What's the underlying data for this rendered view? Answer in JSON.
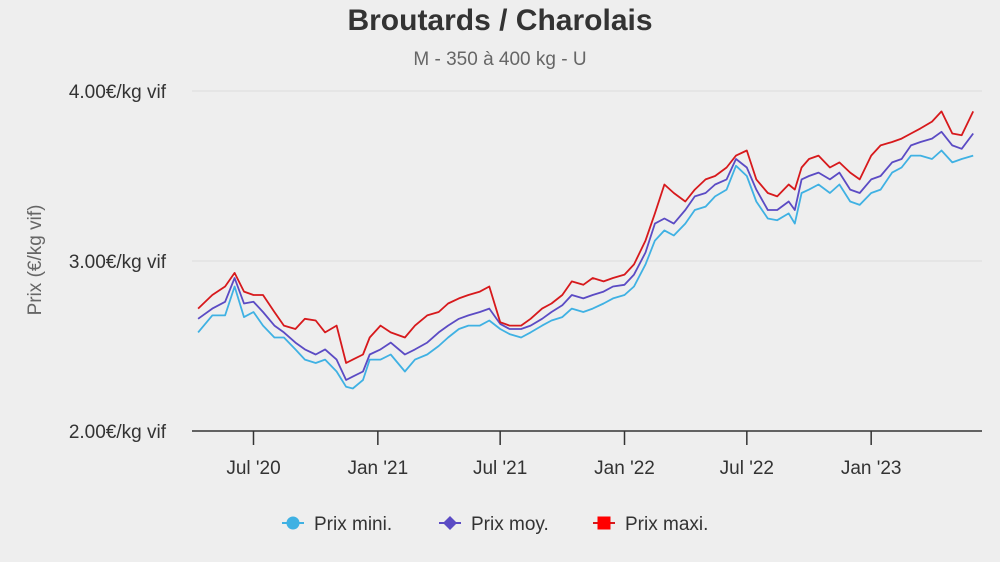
{
  "chart_data": {
    "type": "line",
    "title": "Broutards / Charolais",
    "subtitle": "M - 350 à 400 kg - U",
    "ylabel": "Prix (€/kg vif)",
    "xlabel": "",
    "ylim": [
      2.0,
      4.0
    ],
    "yticks": [
      {
        "value": 2.0,
        "label": "2.00€/kg vif"
      },
      {
        "value": 3.0,
        "label": "3.00€/kg vif"
      },
      {
        "value": 4.0,
        "label": "4.00€/kg vif"
      }
    ],
    "xlim": [
      "2020-04-01",
      "2023-06-14"
    ],
    "xticks": [
      {
        "date": "2020-07-01",
        "label": "Jul '20"
      },
      {
        "date": "2021-01-01",
        "label": "Jan '21"
      },
      {
        "date": "2021-07-01",
        "label": "Jul '21"
      },
      {
        "date": "2022-01-01",
        "label": "Jan '22"
      },
      {
        "date": "2022-07-01",
        "label": "Jul '22"
      },
      {
        "date": "2023-01-01",
        "label": "Jan '23"
      }
    ],
    "grid": true,
    "legend_position": "bottom-center",
    "series": [
      {
        "name": "Prix mini.",
        "color": "#3fb1e3",
        "marker": "circle",
        "points": [
          [
            "2020-04-10",
            2.58
          ],
          [
            "2020-05-01",
            2.68
          ],
          [
            "2020-05-20",
            2.68
          ],
          [
            "2020-06-03",
            2.85
          ],
          [
            "2020-06-17",
            2.67
          ],
          [
            "2020-07-01",
            2.7
          ],
          [
            "2020-07-15",
            2.62
          ],
          [
            "2020-08-01",
            2.55
          ],
          [
            "2020-08-15",
            2.55
          ],
          [
            "2020-09-01",
            2.48
          ],
          [
            "2020-09-15",
            2.42
          ],
          [
            "2020-10-01",
            2.4
          ],
          [
            "2020-10-15",
            2.42
          ],
          [
            "2020-11-01",
            2.35
          ],
          [
            "2020-11-15",
            2.26
          ],
          [
            "2020-11-25",
            2.25
          ],
          [
            "2020-12-10",
            2.3
          ],
          [
            "2020-12-20",
            2.42
          ],
          [
            "2021-01-05",
            2.42
          ],
          [
            "2021-01-20",
            2.45
          ],
          [
            "2021-02-10",
            2.35
          ],
          [
            "2021-02-25",
            2.42
          ],
          [
            "2021-03-15",
            2.45
          ],
          [
            "2021-04-01",
            2.5
          ],
          [
            "2021-04-15",
            2.55
          ],
          [
            "2021-05-01",
            2.6
          ],
          [
            "2021-05-15",
            2.62
          ],
          [
            "2021-06-01",
            2.62
          ],
          [
            "2021-06-15",
            2.65
          ],
          [
            "2021-07-01",
            2.6
          ],
          [
            "2021-07-15",
            2.57
          ],
          [
            "2021-08-01",
            2.55
          ],
          [
            "2021-08-15",
            2.58
          ],
          [
            "2021-09-01",
            2.62
          ],
          [
            "2021-09-15",
            2.65
          ],
          [
            "2021-10-01",
            2.67
          ],
          [
            "2021-10-15",
            2.72
          ],
          [
            "2021-11-01",
            2.7
          ],
          [
            "2021-11-15",
            2.72
          ],
          [
            "2021-12-01",
            2.75
          ],
          [
            "2021-12-15",
            2.78
          ],
          [
            "2022-01-01",
            2.8
          ],
          [
            "2022-01-15",
            2.85
          ],
          [
            "2022-02-01",
            2.98
          ],
          [
            "2022-02-15",
            3.12
          ],
          [
            "2022-03-01",
            3.18
          ],
          [
            "2022-03-15",
            3.15
          ],
          [
            "2022-04-01",
            3.22
          ],
          [
            "2022-04-15",
            3.3
          ],
          [
            "2022-05-01",
            3.32
          ],
          [
            "2022-05-15",
            3.38
          ],
          [
            "2022-06-01",
            3.42
          ],
          [
            "2022-06-15",
            3.56
          ],
          [
            "2022-07-01",
            3.5
          ],
          [
            "2022-07-15",
            3.35
          ],
          [
            "2022-08-01",
            3.25
          ],
          [
            "2022-08-15",
            3.24
          ],
          [
            "2022-09-01",
            3.28
          ],
          [
            "2022-09-10",
            3.22
          ],
          [
            "2022-09-20",
            3.4
          ],
          [
            "2022-10-01",
            3.42
          ],
          [
            "2022-10-15",
            3.45
          ],
          [
            "2022-11-01",
            3.4
          ],
          [
            "2022-11-15",
            3.45
          ],
          [
            "2022-12-01",
            3.35
          ],
          [
            "2022-12-15",
            3.33
          ],
          [
            "2023-01-01",
            3.4
          ],
          [
            "2023-01-15",
            3.42
          ],
          [
            "2023-02-01",
            3.52
          ],
          [
            "2023-02-15",
            3.55
          ],
          [
            "2023-03-01",
            3.62
          ],
          [
            "2023-03-15",
            3.62
          ],
          [
            "2023-04-01",
            3.6
          ],
          [
            "2023-04-15",
            3.65
          ],
          [
            "2023-05-01",
            3.58
          ],
          [
            "2023-05-15",
            3.6
          ],
          [
            "2023-06-01",
            3.62
          ]
        ]
      },
      {
        "name": "Prix moy.",
        "color": "#5b4bc4",
        "marker": "diamond",
        "points": [
          [
            "2020-04-10",
            2.66
          ],
          [
            "2020-05-01",
            2.72
          ],
          [
            "2020-05-20",
            2.76
          ],
          [
            "2020-06-03",
            2.9
          ],
          [
            "2020-06-17",
            2.75
          ],
          [
            "2020-07-01",
            2.76
          ],
          [
            "2020-07-15",
            2.7
          ],
          [
            "2020-08-01",
            2.62
          ],
          [
            "2020-08-15",
            2.58
          ],
          [
            "2020-09-01",
            2.52
          ],
          [
            "2020-09-15",
            2.48
          ],
          [
            "2020-10-01",
            2.45
          ],
          [
            "2020-10-15",
            2.48
          ],
          [
            "2020-11-01",
            2.42
          ],
          [
            "2020-11-15",
            2.3
          ],
          [
            "2020-11-25",
            2.32
          ],
          [
            "2020-12-10",
            2.35
          ],
          [
            "2020-12-20",
            2.45
          ],
          [
            "2021-01-05",
            2.48
          ],
          [
            "2021-01-20",
            2.52
          ],
          [
            "2021-02-10",
            2.45
          ],
          [
            "2021-02-25",
            2.48
          ],
          [
            "2021-03-15",
            2.52
          ],
          [
            "2021-04-01",
            2.58
          ],
          [
            "2021-04-15",
            2.62
          ],
          [
            "2021-05-01",
            2.66
          ],
          [
            "2021-05-15",
            2.68
          ],
          [
            "2021-06-01",
            2.7
          ],
          [
            "2021-06-15",
            2.72
          ],
          [
            "2021-07-01",
            2.63
          ],
          [
            "2021-07-15",
            2.6
          ],
          [
            "2021-08-01",
            2.6
          ],
          [
            "2021-08-15",
            2.62
          ],
          [
            "2021-09-01",
            2.66
          ],
          [
            "2021-09-15",
            2.7
          ],
          [
            "2021-10-01",
            2.74
          ],
          [
            "2021-10-15",
            2.8
          ],
          [
            "2021-11-01",
            2.78
          ],
          [
            "2021-11-15",
            2.8
          ],
          [
            "2021-12-01",
            2.82
          ],
          [
            "2021-12-15",
            2.85
          ],
          [
            "2022-01-01",
            2.86
          ],
          [
            "2022-01-15",
            2.92
          ],
          [
            "2022-02-01",
            3.05
          ],
          [
            "2022-02-15",
            3.22
          ],
          [
            "2022-03-01",
            3.25
          ],
          [
            "2022-03-15",
            3.22
          ],
          [
            "2022-04-01",
            3.3
          ],
          [
            "2022-04-15",
            3.38
          ],
          [
            "2022-05-01",
            3.4
          ],
          [
            "2022-05-15",
            3.45
          ],
          [
            "2022-06-01",
            3.48
          ],
          [
            "2022-06-15",
            3.6
          ],
          [
            "2022-07-01",
            3.55
          ],
          [
            "2022-07-15",
            3.42
          ],
          [
            "2022-08-01",
            3.3
          ],
          [
            "2022-08-15",
            3.3
          ],
          [
            "2022-09-01",
            3.35
          ],
          [
            "2022-09-10",
            3.3
          ],
          [
            "2022-09-20",
            3.48
          ],
          [
            "2022-10-01",
            3.5
          ],
          [
            "2022-10-15",
            3.52
          ],
          [
            "2022-11-01",
            3.48
          ],
          [
            "2022-11-15",
            3.52
          ],
          [
            "2022-12-01",
            3.42
          ],
          [
            "2022-12-15",
            3.4
          ],
          [
            "2023-01-01",
            3.48
          ],
          [
            "2023-01-15",
            3.5
          ],
          [
            "2023-02-01",
            3.58
          ],
          [
            "2023-02-15",
            3.6
          ],
          [
            "2023-03-01",
            3.68
          ],
          [
            "2023-03-15",
            3.7
          ],
          [
            "2023-04-01",
            3.72
          ],
          [
            "2023-04-15",
            3.76
          ],
          [
            "2023-05-01",
            3.68
          ],
          [
            "2023-05-15",
            3.66
          ],
          [
            "2023-06-01",
            3.75
          ]
        ]
      },
      {
        "name": "Prix maxi.",
        "color": "#d7191c",
        "marker": "square",
        "points": [
          [
            "2020-04-10",
            2.72
          ],
          [
            "2020-05-01",
            2.8
          ],
          [
            "2020-05-20",
            2.85
          ],
          [
            "2020-06-03",
            2.93
          ],
          [
            "2020-06-17",
            2.82
          ],
          [
            "2020-07-01",
            2.8
          ],
          [
            "2020-07-15",
            2.8
          ],
          [
            "2020-08-01",
            2.7
          ],
          [
            "2020-08-15",
            2.62
          ],
          [
            "2020-09-01",
            2.6
          ],
          [
            "2020-09-15",
            2.66
          ],
          [
            "2020-10-01",
            2.65
          ],
          [
            "2020-10-15",
            2.58
          ],
          [
            "2020-11-01",
            2.62
          ],
          [
            "2020-11-15",
            2.4
          ],
          [
            "2020-11-25",
            2.42
          ],
          [
            "2020-12-10",
            2.45
          ],
          [
            "2020-12-20",
            2.55
          ],
          [
            "2021-01-05",
            2.62
          ],
          [
            "2021-01-20",
            2.58
          ],
          [
            "2021-02-10",
            2.55
          ],
          [
            "2021-02-25",
            2.62
          ],
          [
            "2021-03-15",
            2.68
          ],
          [
            "2021-04-01",
            2.7
          ],
          [
            "2021-04-15",
            2.75
          ],
          [
            "2021-05-01",
            2.78
          ],
          [
            "2021-05-15",
            2.8
          ],
          [
            "2021-06-01",
            2.82
          ],
          [
            "2021-06-15",
            2.85
          ],
          [
            "2021-07-01",
            2.64
          ],
          [
            "2021-07-15",
            2.62
          ],
          [
            "2021-08-01",
            2.62
          ],
          [
            "2021-08-15",
            2.66
          ],
          [
            "2021-09-01",
            2.72
          ],
          [
            "2021-09-15",
            2.75
          ],
          [
            "2021-10-01",
            2.8
          ],
          [
            "2021-10-15",
            2.88
          ],
          [
            "2021-11-01",
            2.86
          ],
          [
            "2021-11-15",
            2.9
          ],
          [
            "2021-12-01",
            2.88
          ],
          [
            "2021-12-15",
            2.9
          ],
          [
            "2022-01-01",
            2.92
          ],
          [
            "2022-01-15",
            2.98
          ],
          [
            "2022-02-01",
            3.12
          ],
          [
            "2022-02-15",
            3.28
          ],
          [
            "2022-03-01",
            3.45
          ],
          [
            "2022-03-15",
            3.4
          ],
          [
            "2022-04-01",
            3.35
          ],
          [
            "2022-04-15",
            3.42
          ],
          [
            "2022-05-01",
            3.48
          ],
          [
            "2022-05-15",
            3.5
          ],
          [
            "2022-06-01",
            3.55
          ],
          [
            "2022-06-15",
            3.62
          ],
          [
            "2022-07-01",
            3.65
          ],
          [
            "2022-07-15",
            3.48
          ],
          [
            "2022-08-01",
            3.4
          ],
          [
            "2022-08-15",
            3.38
          ],
          [
            "2022-09-01",
            3.45
          ],
          [
            "2022-09-10",
            3.42
          ],
          [
            "2022-09-20",
            3.55
          ],
          [
            "2022-10-01",
            3.6
          ],
          [
            "2022-10-15",
            3.62
          ],
          [
            "2022-11-01",
            3.55
          ],
          [
            "2022-11-15",
            3.58
          ],
          [
            "2022-12-01",
            3.52
          ],
          [
            "2022-12-15",
            3.48
          ],
          [
            "2023-01-01",
            3.62
          ],
          [
            "2023-01-15",
            3.68
          ],
          [
            "2023-02-01",
            3.7
          ],
          [
            "2023-02-15",
            3.72
          ],
          [
            "2023-03-01",
            3.75
          ],
          [
            "2023-03-15",
            3.78
          ],
          [
            "2023-04-01",
            3.82
          ],
          [
            "2023-04-15",
            3.88
          ],
          [
            "2023-05-01",
            3.75
          ],
          [
            "2023-05-15",
            3.74
          ],
          [
            "2023-06-01",
            3.88
          ]
        ]
      }
    ]
  }
}
